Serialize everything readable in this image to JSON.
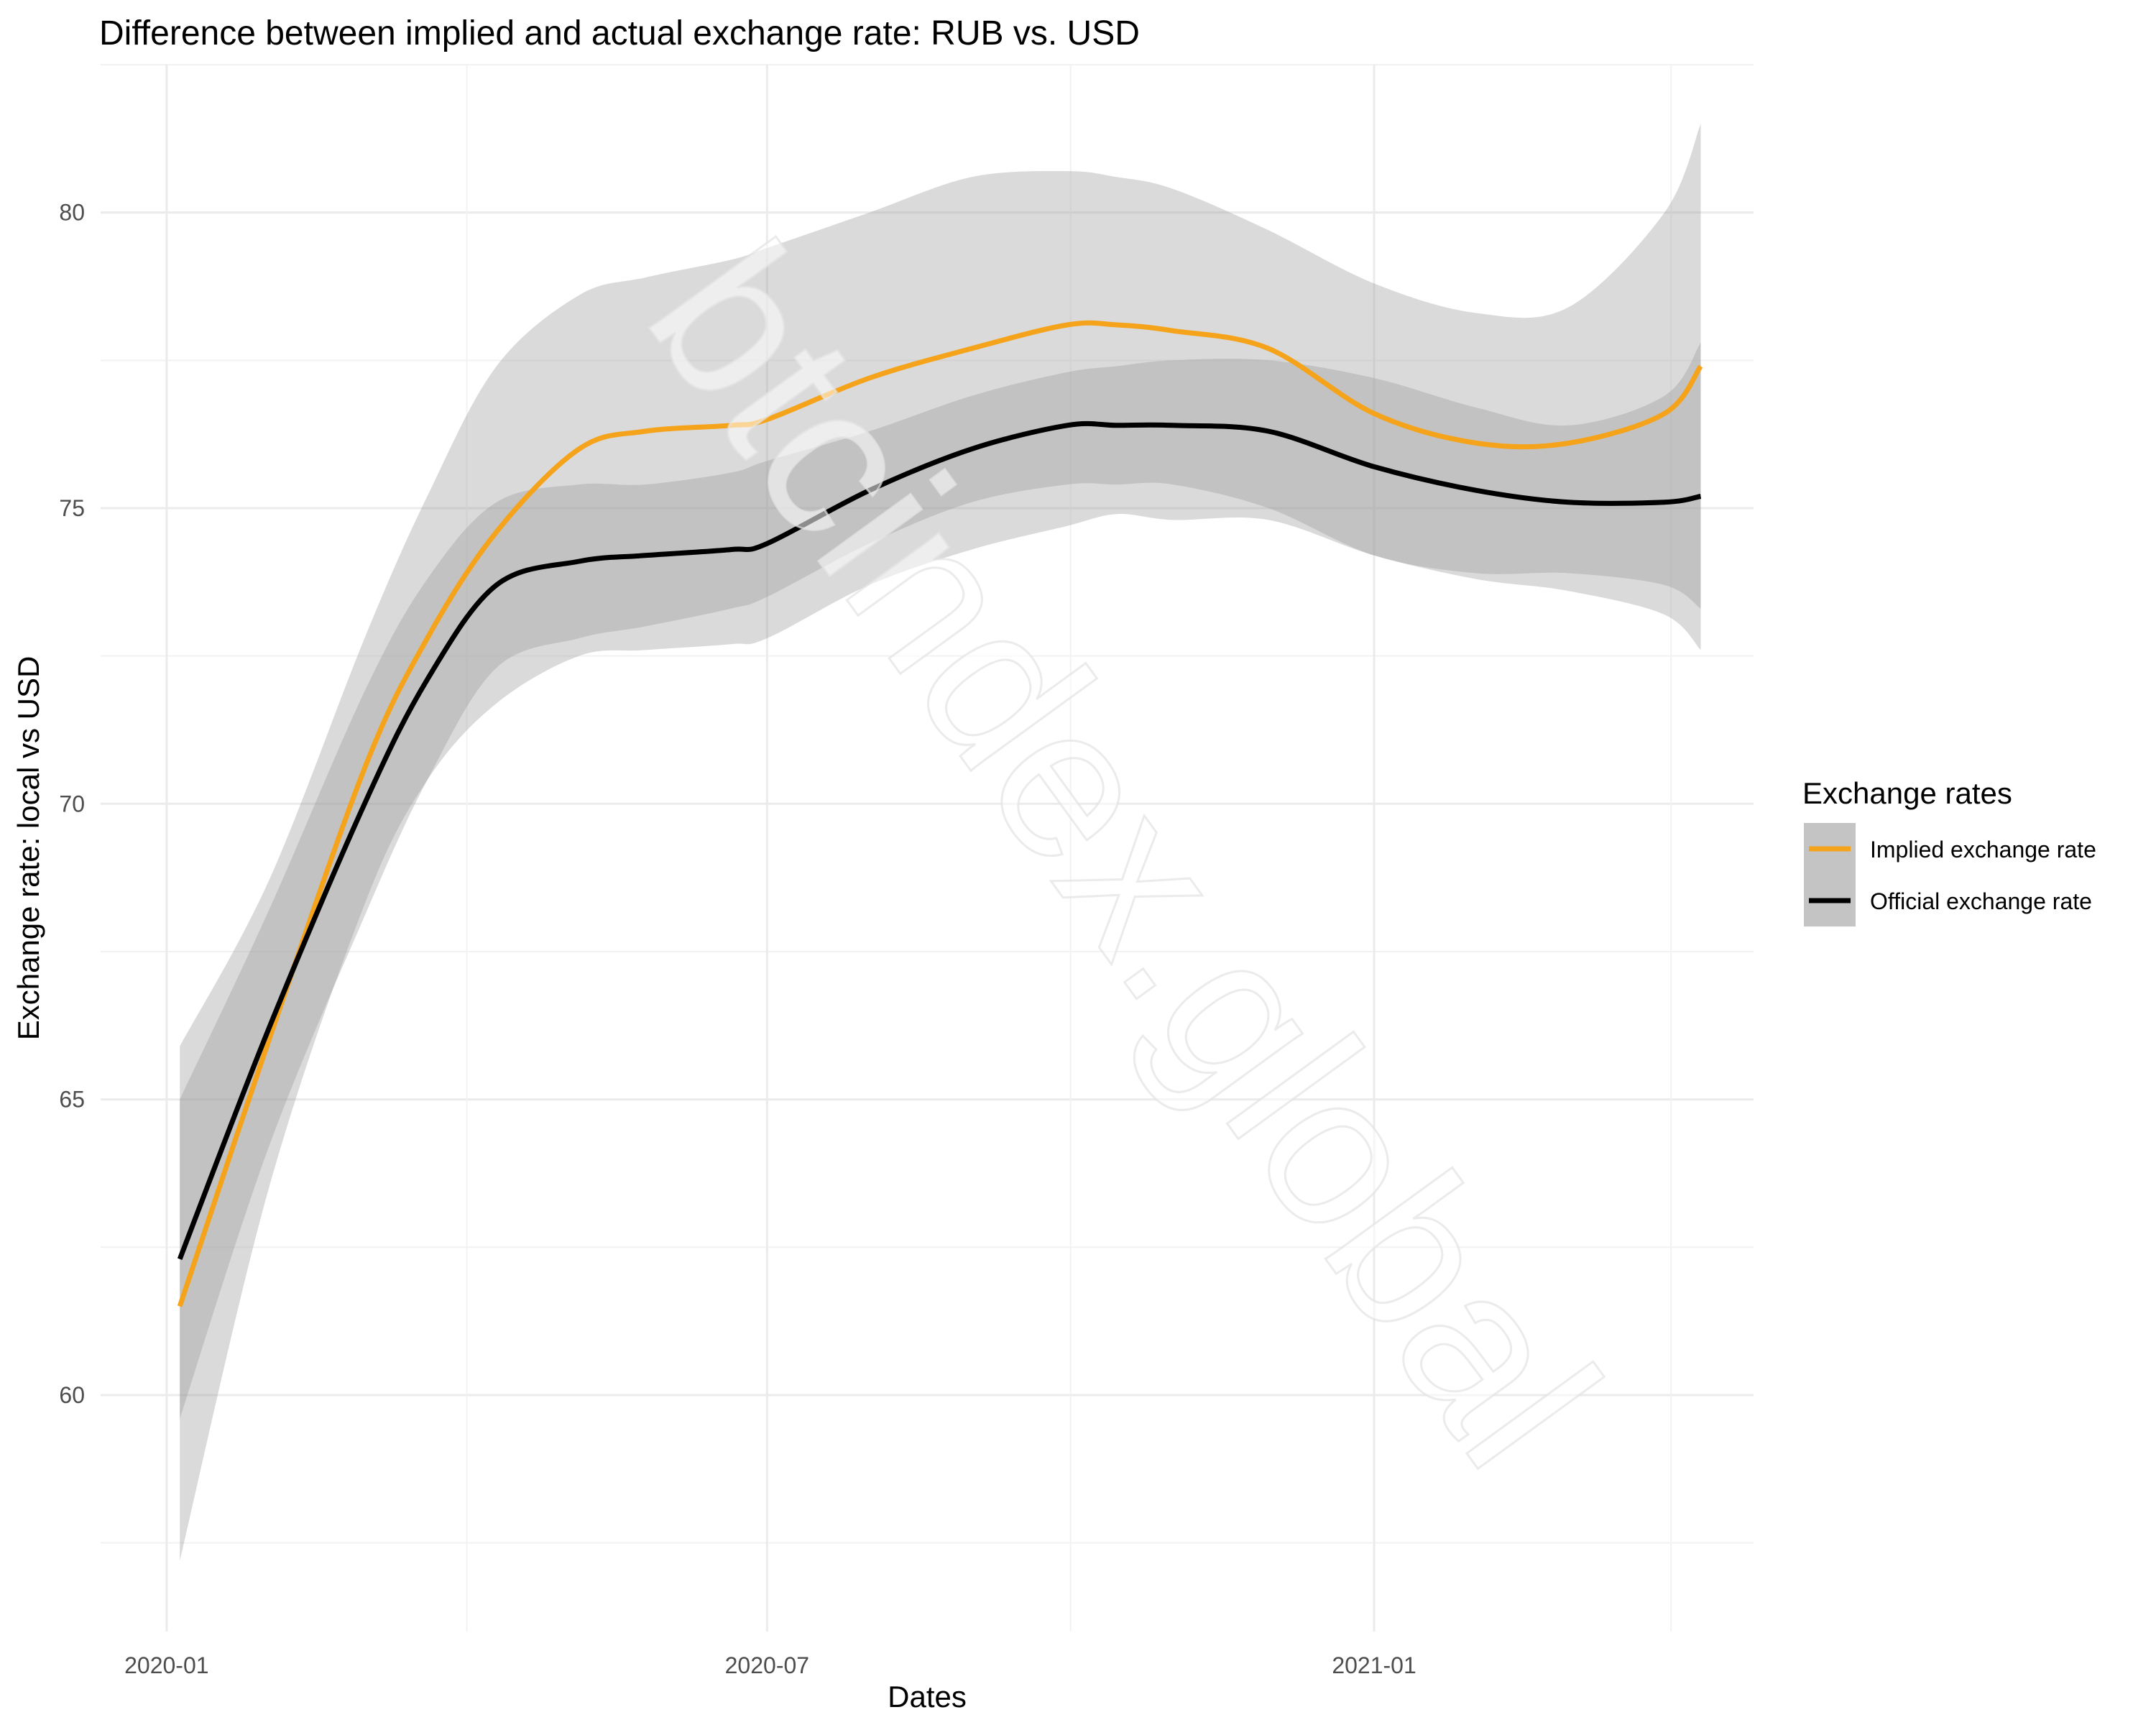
{
  "chart_data": {
    "type": "line",
    "title": "Difference between implied and actual exchange rate: RUB vs. USD",
    "xlabel": "Dates",
    "ylabel": "Exchange rate: local vs USD",
    "x_ticks": [
      "2020-01-01",
      "2020-07-01",
      "2021-01-01"
    ],
    "x_tick_labels": [
      "2020-01",
      "2020-07",
      "2021-01"
    ],
    "y_ticks": [
      60,
      65,
      70,
      75,
      80
    ],
    "xlim": [
      "2019-12-12",
      "2021-04-26"
    ],
    "ylim": [
      56.0,
      82.5
    ],
    "grid": true,
    "legend": {
      "title": "Exchange rates",
      "position": "right",
      "entries": [
        "Implied exchange rate",
        "Official exchange rate"
      ]
    },
    "x": [
      "2020-01-05",
      "2020-02-01",
      "2020-03-01",
      "2020-03-20",
      "2020-04-10",
      "2020-05-05",
      "2020-05-25",
      "2020-06-20",
      "2020-07-01",
      "2020-08-01",
      "2020-09-01",
      "2020-09-30",
      "2020-10-15",
      "2020-11-01",
      "2020-11-30",
      "2021-01-01",
      "2021-02-01",
      "2021-03-01",
      "2021-03-30",
      "2021-04-10"
    ],
    "series": [
      {
        "name": "Implied exchange rate",
        "color": "#f5a31a",
        "values": [
          61.5,
          66.0,
          70.6,
          72.8,
          74.6,
          76.0,
          76.3,
          76.4,
          76.5,
          77.2,
          77.7,
          78.1,
          78.1,
          78.0,
          77.7,
          76.6,
          76.1,
          76.1,
          76.6,
          77.4
        ],
        "band_lower": [
          57.2,
          63.5,
          68.3,
          70.4,
          71.7,
          72.5,
          72.6,
          72.7,
          72.8,
          73.7,
          74.3,
          74.7,
          74.9,
          74.8,
          74.8,
          74.2,
          73.8,
          73.6,
          73.2,
          72.6
        ],
        "band_upper": [
          65.9,
          68.7,
          72.8,
          75.2,
          77.4,
          78.6,
          78.9,
          79.2,
          79.4,
          80.0,
          80.6,
          80.7,
          80.6,
          80.4,
          79.7,
          78.8,
          78.3,
          78.4,
          80.0,
          81.5
        ]
      },
      {
        "name": "Official exchange rate",
        "color": "#000000",
        "values": [
          62.3,
          66.2,
          70.0,
          72.1,
          73.7,
          74.1,
          74.2,
          74.3,
          74.4,
          75.3,
          76.0,
          76.4,
          76.4,
          76.4,
          76.3,
          75.7,
          75.3,
          75.1,
          75.1,
          75.2
        ],
        "band_lower": [
          59.6,
          64.2,
          68.1,
          70.4,
          72.3,
          72.8,
          73.0,
          73.3,
          73.5,
          74.4,
          75.1,
          75.4,
          75.4,
          75.4,
          75.0,
          74.2,
          73.9,
          73.9,
          73.7,
          73.3
        ],
        "band_upper": [
          65.0,
          68.2,
          71.9,
          73.8,
          75.1,
          75.4,
          75.4,
          75.6,
          75.8,
          76.3,
          76.9,
          77.3,
          77.4,
          77.5,
          77.5,
          77.2,
          76.7,
          76.4,
          76.9,
          77.8
        ]
      }
    ]
  },
  "watermark": "btcindex.global",
  "colors": {
    "band_fill": "#999999",
    "grid_major": "#ebebeb",
    "grid_minor": "#f2f2f2",
    "legend_key_bg": "#c4c4c4"
  }
}
